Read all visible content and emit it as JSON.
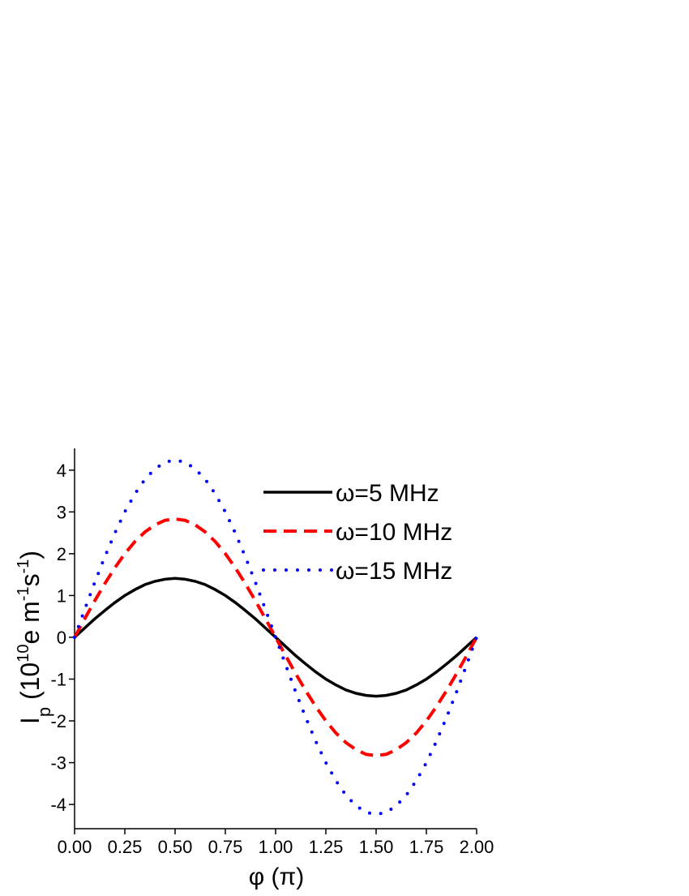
{
  "chart_data": {
    "type": "line",
    "x_label": "φ (π)",
    "y_label": [
      "I",
      "p",
      " (10",
      "10",
      "e m",
      "-1",
      "s",
      "-1",
      ")"
    ],
    "x": [
      0,
      0.05,
      0.1,
      0.15,
      0.2,
      0.25,
      0.3,
      0.35,
      0.4,
      0.45,
      0.5,
      0.55,
      0.6,
      0.65,
      0.7,
      0.75,
      0.8,
      0.85,
      0.9,
      0.95,
      1,
      1.05,
      1.1,
      1.15,
      1.2,
      1.25,
      1.3,
      1.35,
      1.4,
      1.45,
      1.5,
      1.55,
      1.6,
      1.65,
      1.7,
      1.75,
      1.8,
      1.85,
      1.9,
      1.95,
      2
    ],
    "series": [
      {
        "name": "ω=5 MHz",
        "color": "#000000",
        "line_style": "solid",
        "values": [
          0,
          0.22,
          0.44,
          0.64,
          0.83,
          1.0,
          1.14,
          1.26,
          1.34,
          1.39,
          1.41,
          1.39,
          1.34,
          1.26,
          1.14,
          1.0,
          0.83,
          0.64,
          0.44,
          0.22,
          0,
          -0.22,
          -0.44,
          -0.64,
          -0.83,
          -1.0,
          -1.14,
          -1.26,
          -1.34,
          -1.39,
          -1.41,
          -1.39,
          -1.34,
          -1.26,
          -1.14,
          -1.0,
          -0.83,
          -0.64,
          -0.44,
          -0.22,
          0
        ]
      },
      {
        "name": "ω=10 MHz",
        "color": "#ff0000",
        "line_style": "dashed",
        "values": [
          0,
          0.44,
          0.87,
          1.28,
          1.66,
          2.0,
          2.29,
          2.52,
          2.69,
          2.8,
          2.83,
          2.8,
          2.69,
          2.52,
          2.29,
          2.0,
          1.66,
          1.28,
          0.87,
          0.44,
          0,
          -0.44,
          -0.87,
          -1.28,
          -1.66,
          -2.0,
          -2.29,
          -2.52,
          -2.69,
          -2.8,
          -2.83,
          -2.8,
          -2.69,
          -2.52,
          -2.29,
          -2.0,
          -1.66,
          -1.28,
          -0.87,
          -0.44,
          0
        ]
      },
      {
        "name": "ω=15 MHz",
        "color": "#0000ff",
        "line_style": "dotted",
        "values": [
          0,
          0.66,
          1.31,
          1.92,
          2.49,
          3.0,
          3.43,
          3.78,
          4.03,
          4.19,
          4.24,
          4.19,
          4.03,
          3.78,
          3.43,
          3.0,
          2.49,
          1.92,
          1.31,
          0.66,
          0,
          -0.66,
          -1.31,
          -1.92,
          -2.49,
          -3.0,
          -3.43,
          -3.78,
          -4.03,
          -4.19,
          -4.24,
          -4.19,
          -4.03,
          -3.78,
          -3.43,
          -3.0,
          -2.49,
          -1.92,
          -1.31,
          -0.66,
          0
        ]
      }
    ],
    "xlim": [
      0,
      2
    ],
    "xticks": [
      {
        "value": 0,
        "label": "0.00"
      },
      {
        "value": 0.25,
        "label": "0.25"
      },
      {
        "value": 0.5,
        "label": "0.50"
      },
      {
        "value": 0.75,
        "label": "0.75"
      },
      {
        "value": 1,
        "label": "1.00"
      },
      {
        "value": 1.25,
        "label": "1.25"
      },
      {
        "value": 1.5,
        "label": "1.50"
      },
      {
        "value": 1.75,
        "label": "1.75"
      },
      {
        "value": 2,
        "label": "2.00"
      }
    ],
    "ylim": [
      -4.58,
      4.52
    ],
    "yticks": [
      -4,
      -3,
      -2,
      -1,
      0,
      1,
      2,
      3,
      4
    ],
    "grid": false,
    "legend": "top-right"
  }
}
